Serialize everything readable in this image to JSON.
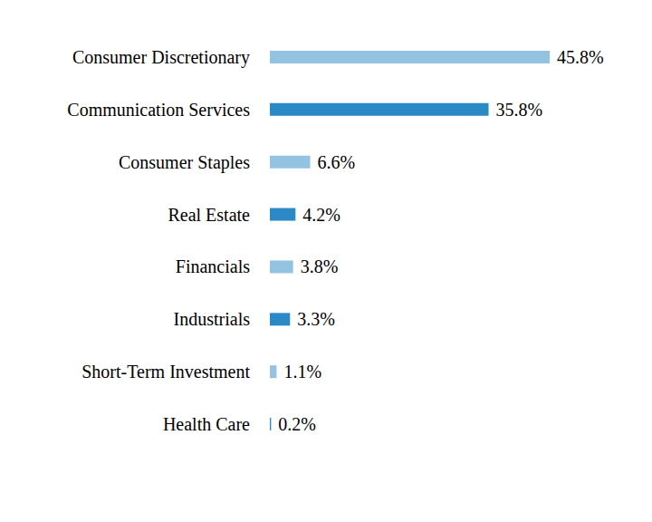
{
  "chart_data": {
    "type": "bar",
    "orientation": "horizontal",
    "categories": [
      "Consumer Discretionary",
      "Communication Services",
      "Consumer Staples",
      "Real Estate",
      "Financials",
      "Industrials",
      "Short-Term Investment",
      "Health Care"
    ],
    "values": [
      45.8,
      35.8,
      6.6,
      4.2,
      3.8,
      3.3,
      1.1,
      0.2
    ],
    "value_labels": [
      "45.8%",
      "35.8%",
      "6.6%",
      "4.2%",
      "3.8%",
      "3.3%",
      "1.1%",
      "0.2%"
    ],
    "colors": [
      "#93c3e0",
      "#2b8ac6",
      "#93c3e0",
      "#2b8ac6",
      "#93c3e0",
      "#2b8ac6",
      "#93c3e0",
      "#2b8ac6"
    ],
    "data_labels": true,
    "tick_labels": "y",
    "grid": false
  }
}
